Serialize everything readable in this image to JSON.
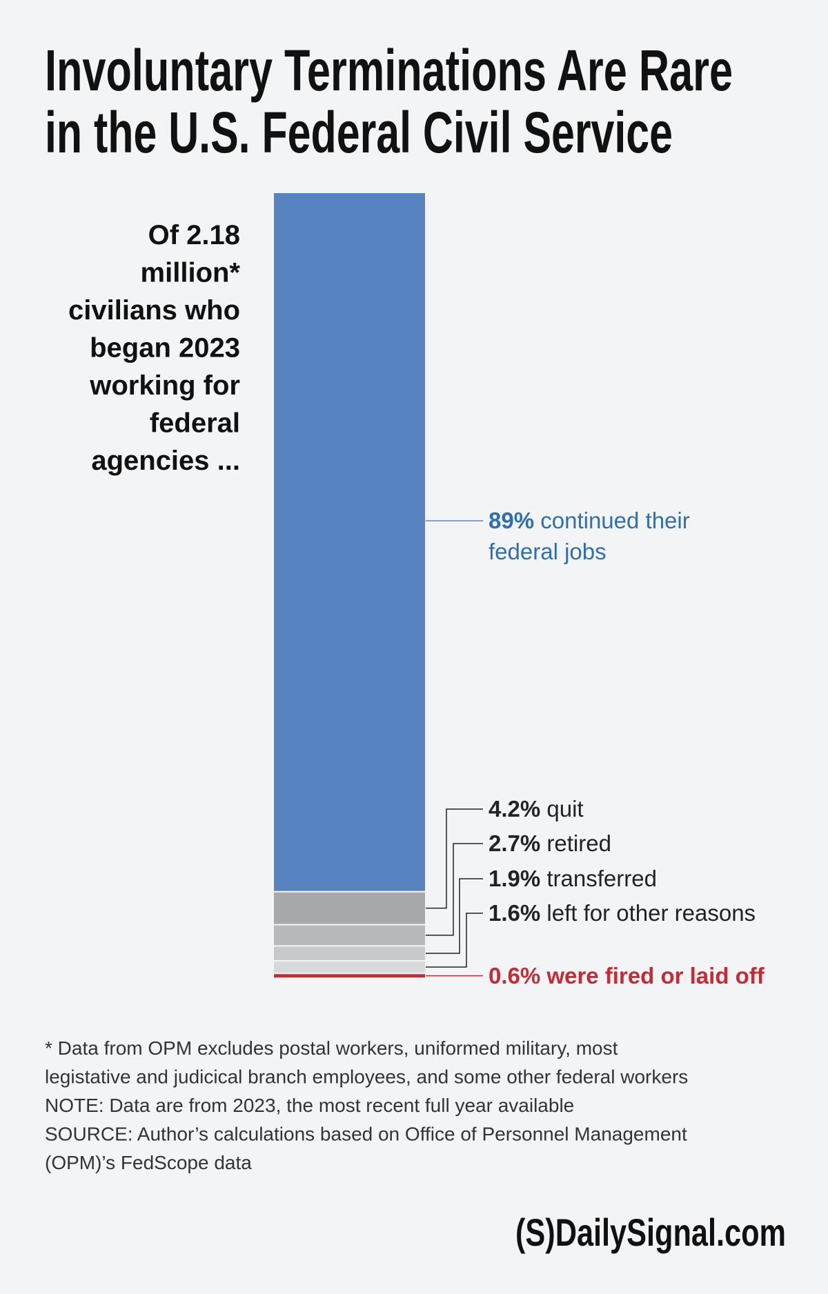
{
  "chart_data": {
    "type": "stacked-bar",
    "title": [
      "Involuntary Terminations Are Rare",
      "in the U.S. Federal Civil Service"
    ],
    "annotation": [
      "Of 2.18",
      "million*",
      "civilians who",
      "began 2023",
      "working for",
      "federal",
      "agencies ..."
    ],
    "ylim": [
      0,
      100
    ],
    "series": [
      {
        "name": "continued their federal jobs",
        "color": "#5783c1",
        "values": [
          89
        ],
        "value_labels": [
          "89%"
        ]
      },
      {
        "name": "quit",
        "color": "#a7a8ab",
        "values": [
          4.2
        ],
        "value_labels": [
          "4.2%"
        ]
      },
      {
        "name": "retired",
        "color": "#b8b9bc",
        "values": [
          2.7
        ],
        "value_labels": [
          "2.7%"
        ]
      },
      {
        "name": "transferred",
        "color": "#c8c9cc",
        "values": [
          1.9
        ],
        "value_labels": [
          "1.9%"
        ]
      },
      {
        "name": "left for other reasons",
        "color": "#d8d9db",
        "values": [
          1.6
        ],
        "value_labels": [
          "1.6%"
        ]
      },
      {
        "name": "were fired or laid off",
        "color": "#c62b33",
        "values": [
          0.6
        ],
        "value_labels": [
          "0.6%"
        ]
      }
    ],
    "notes": [
      "* Data from OPM excludes postal workers, uniformed military, most",
      "legistative and judicical branch employees, and some other federal workers",
      "NOTE: Data are from 2023, the most recent full year available",
      "SOURCE: Author’s calculations based on Office of Personnel Management",
      "(OPM)’s FedScope data"
    ],
    "source": "(S)DailySignal.com"
  }
}
